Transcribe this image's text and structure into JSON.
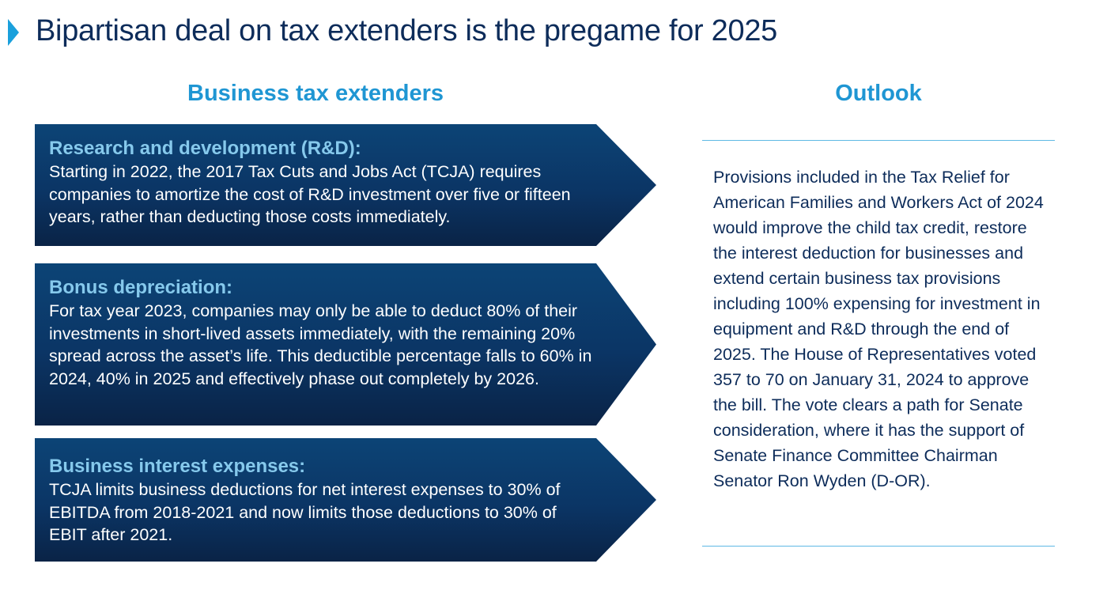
{
  "title": "Bipartisan deal on tax extenders is the pregame for 2025",
  "left_column": {
    "heading": "Business tax extenders",
    "items": [
      {
        "title": "Research and development (R&D):",
        "text": "Starting in 2022, the 2017 Tax Cuts and Jobs Act (TCJA) requires companies to amortize the cost of R&D investment over five or fifteen years, rather than deducting those costs immediately."
      },
      {
        "title": "Bonus depreciation:",
        "text": "For tax year 2023, companies may only be able to deduct 80% of their investments in short-lived assets immediately, with the remaining 20% spread across the asset’s life. This deductible percentage falls to 60% in 2024, 40% in 2025 and effectively phase out completely by 2026."
      },
      {
        "title": "Business interest expenses:",
        "text": "TCJA limits business deductions for net interest expenses to 30% of EBITDA from 2018-2021 and now limits those deductions to 30% of EBIT after 2021."
      }
    ]
  },
  "right_column": {
    "heading": "Outlook",
    "text": "Provisions included in the Tax Relief for American Families and Workers Act of 2024 would improve the child tax credit, restore the interest deduction for businesses and extend certain business tax provisions including 100% expensing for investment in equipment and R&D through the end of 2025. The House of Representatives voted 357 to 70 on January 31, 2024 to approve the bill. The vote clears a path for Senate consideration, where it has the support of Senate Finance Committee Chairman Senator Ron Wyden (D-OR)."
  },
  "colors": {
    "title": "#0d2c5a",
    "accent": "#1f96d3",
    "arrow_top": "#0c4476",
    "arrow_bottom": "#0a2346",
    "arrow_title": "#86c9ec",
    "rule": "#5fb9e4"
  }
}
